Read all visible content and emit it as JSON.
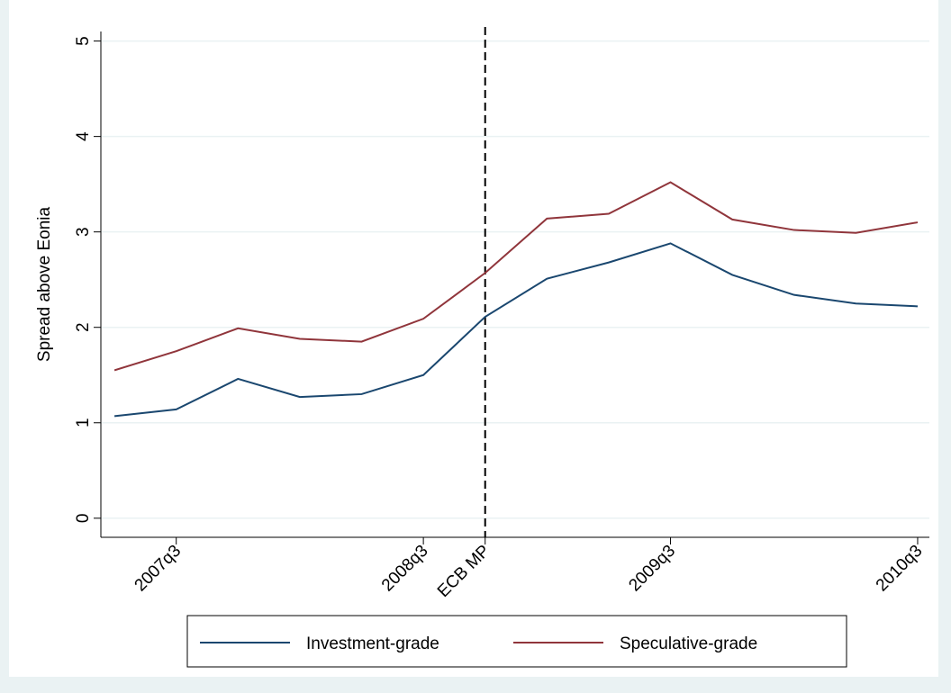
{
  "chart_data": {
    "type": "line",
    "y_label": "Spread above Eonia",
    "x": [
      189,
      190,
      191,
      192,
      193,
      194,
      195,
      196,
      197,
      198,
      199,
      200,
      201,
      202
    ],
    "xlim": [
      188.78,
      202.19
    ],
    "xticks": [
      {
        "value": 190,
        "label": "2007q3"
      },
      {
        "value": 194,
        "label": "2008q3"
      },
      {
        "value": 198,
        "label": "2009q3"
      },
      {
        "value": 202,
        "label": "2010q3"
      }
    ],
    "ylim": [
      -0.2,
      5.1
    ],
    "yticks": [
      0,
      1,
      2,
      3,
      4,
      5
    ],
    "grid": true,
    "annotations": [
      {
        "x": 195,
        "label": "ECB MP"
      }
    ],
    "series": [
      {
        "name": "Investment-grade",
        "color": "#1a476f",
        "values": [
          1.07,
          1.14,
          1.46,
          1.27,
          1.3,
          1.5,
          2.11,
          2.51,
          2.68,
          2.88,
          2.55,
          2.34,
          2.25,
          2.22
        ]
      },
      {
        "name": "Speculative-grade",
        "color": "#90353b",
        "values": [
          1.55,
          1.75,
          1.99,
          1.88,
          1.85,
          2.09,
          2.57,
          3.14,
          3.19,
          3.52,
          3.13,
          3.02,
          2.99,
          3.1
        ]
      }
    ]
  }
}
